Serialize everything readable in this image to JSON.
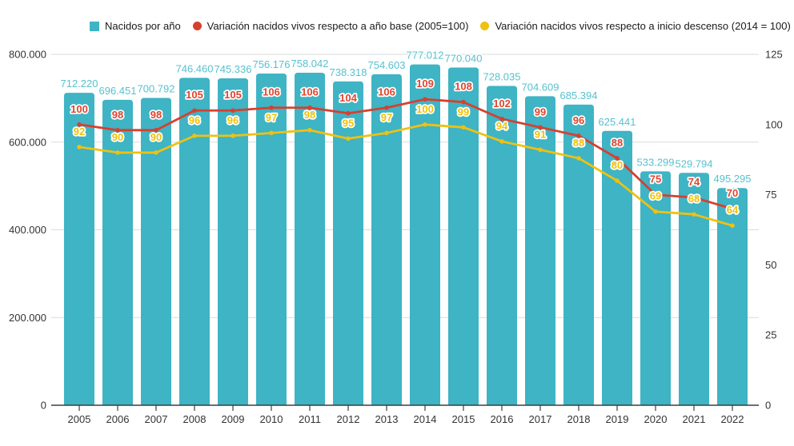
{
  "colors": {
    "bar": "#3EB4C4",
    "bar_label": "#57C1CE",
    "red": "#D6402F",
    "red_label": "#E0452F",
    "yellow": "#EFC112",
    "yellow_label": "#F0C20A",
    "grid": "#DBDBDB",
    "axis_line": "#3F3F3F",
    "axis_text": "#333333",
    "halo": "#FFFFFF"
  },
  "legend": {
    "items": [
      {
        "label": "Nacidos por año",
        "marker": "square",
        "color": "#3EB4C4"
      },
      {
        "label": "Variación nacidos vivos respecto a año base (2005=100)",
        "marker": "circle",
        "color": "#D6402F"
      },
      {
        "label": "Variación nacidos vivos respecto a inicio descenso (2014 = 100)",
        "marker": "circle",
        "color": "#EFC112"
      }
    ]
  },
  "chart_data": {
    "type": "bar",
    "title": "",
    "legend_position": "top",
    "grid": true,
    "categories": [
      "2005",
      "2006",
      "2007",
      "2008",
      "2009",
      "2010",
      "2011",
      "2012",
      "2013",
      "2014",
      "2015",
      "2016",
      "2017",
      "2018",
      "2019",
      "2020",
      "2021",
      "2022"
    ],
    "bar_series": {
      "name": "Nacidos por año",
      "axis": "left",
      "values": [
        712220,
        696451,
        700792,
        746460,
        745336,
        756176,
        758042,
        738318,
        754603,
        777012,
        770040,
        728035,
        704609,
        685394,
        625441,
        533299,
        529794,
        495295
      ],
      "labels": [
        "712.220",
        "696.451",
        "700.792",
        "746.460",
        "745.336",
        "756.176",
        "758.042",
        "738.318",
        "754.603",
        "777.012",
        "770.040",
        "728.035",
        "704.609",
        "685.394",
        "625.441",
        "533.299",
        "529.794",
        "495.295"
      ]
    },
    "line_series": [
      {
        "name": "Variación nacidos vivos respecto a año base (2005=100)",
        "axis": "right",
        "color_key": "red",
        "label_color_key": "red_label",
        "values": [
          100,
          98,
          98,
          105,
          105,
          106,
          106,
          104,
          106,
          109,
          108,
          102,
          99,
          96,
          88,
          75,
          74,
          70
        ]
      },
      {
        "name": "Variación nacidos vivos respecto a inicio descenso (2014 = 100)",
        "axis": "right",
        "color_key": "yellow",
        "label_color_key": "yellow_label",
        "values": [
          92,
          90,
          90,
          96,
          96,
          97,
          98,
          95,
          97,
          100,
          99,
          94,
          91,
          88,
          80,
          69,
          68,
          64
        ]
      }
    ],
    "left_axis": {
      "min": 0,
      "max": 800000,
      "ticks": [
        0,
        200000,
        400000,
        600000,
        800000
      ],
      "tick_labels": [
        "0",
        "200.000",
        "400.000",
        "600.000",
        "800.000"
      ]
    },
    "right_axis": {
      "min": 0,
      "max": 125,
      "ticks": [
        0,
        25,
        50,
        75,
        100,
        125
      ],
      "tick_labels": [
        "0",
        "25",
        "50",
        "75",
        "100",
        "125"
      ]
    }
  }
}
